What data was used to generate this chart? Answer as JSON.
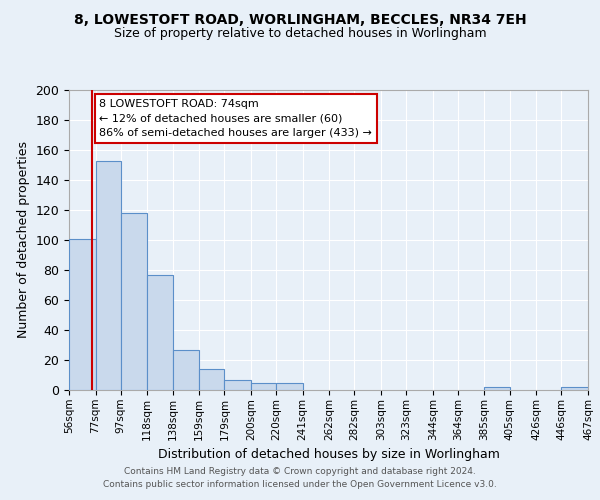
{
  "title": "8, LOWESTOFT ROAD, WORLINGHAM, BECCLES, NR34 7EH",
  "subtitle": "Size of property relative to detached houses in Worlingham",
  "xlabel": "Distribution of detached houses by size in Worlingham",
  "ylabel": "Number of detached properties",
  "bar_edges": [
    56,
    77,
    97,
    118,
    138,
    159,
    179,
    200,
    220,
    241,
    262,
    282,
    303,
    323,
    344,
    364,
    385,
    405,
    426,
    446,
    467
  ],
  "bar_heights": [
    101,
    153,
    118,
    77,
    27,
    14,
    7,
    5,
    5,
    0,
    0,
    0,
    0,
    0,
    0,
    0,
    2,
    0,
    0,
    2,
    0
  ],
  "bar_fill_color": "#c9d9ec",
  "bar_edge_color": "#5b8fc9",
  "property_line_x": 74,
  "property_line_color": "#cc0000",
  "ylim": [
    0,
    200
  ],
  "yticks": [
    0,
    20,
    40,
    60,
    80,
    100,
    120,
    140,
    160,
    180,
    200
  ],
  "annotation_title": "8 LOWESTOFT ROAD: 74sqm",
  "annotation_line1": "← 12% of detached houses are smaller (60)",
  "annotation_line2": "86% of semi-detached houses are larger (433) →",
  "annotation_box_color": "#ffffff",
  "annotation_border_color": "#cc0000",
  "footer_line1": "Contains HM Land Registry data © Crown copyright and database right 2024.",
  "footer_line2": "Contains public sector information licensed under the Open Government Licence v3.0.",
  "background_color": "#e8f0f8",
  "grid_color": "#ffffff",
  "title_fontsize": 10,
  "subtitle_fontsize": 9,
  "ylabel_fontsize": 9,
  "xlabel_fontsize": 9,
  "ytick_fontsize": 9,
  "xtick_fontsize": 7.5,
  "annotation_fontsize": 8,
  "footer_fontsize": 6.5
}
